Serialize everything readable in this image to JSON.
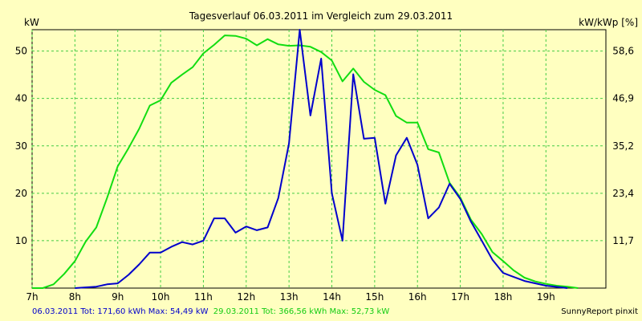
{
  "chart_data": {
    "type": "line",
    "title": "Tagesverlauf 06.03.2011 im Vergleich zum 29.03.2011",
    "ylabel_left": "kW",
    "ylabel_right": "kW/kWp [%]",
    "x_ticks": [
      "7h",
      "8h",
      "9h",
      "10h",
      "11h",
      "12h",
      "13h",
      "14h",
      "15h",
      "16h",
      "17h",
      "18h",
      "19h"
    ],
    "xlim": [
      7.0,
      20.4
    ],
    "y_ticks_left": [
      10,
      20,
      30,
      40,
      50
    ],
    "y_ticks_right": [
      "11,7",
      "23,4",
      "35,2",
      "46,9",
      "58,6"
    ],
    "ylim": [
      0,
      54.5
    ],
    "grid": true,
    "series": [
      {
        "name": "06.03.2011",
        "color": "#0000cc",
        "x": [
          8.0,
          8.5,
          8.75,
          9.0,
          9.25,
          9.5,
          9.75,
          10.0,
          10.25,
          10.5,
          10.75,
          11.0,
          11.25,
          11.5,
          11.75,
          12.0,
          12.25,
          12.5,
          12.75,
          13.0,
          13.25,
          13.5,
          13.75,
          14.0,
          14.25,
          14.5,
          14.75,
          15.0,
          15.25,
          15.5,
          15.75,
          16.0,
          16.25,
          16.5,
          16.75,
          17.0,
          17.25,
          17.5,
          17.75,
          18.0,
          18.5,
          19.0,
          19.5
        ],
        "values": [
          0.0,
          0.3,
          0.8,
          1.0,
          2.8,
          5.0,
          7.5,
          7.5,
          8.7,
          9.7,
          9.2,
          10.0,
          14.7,
          14.7,
          11.7,
          13.0,
          12.2,
          12.8,
          19.0,
          30.5,
          54.5,
          36.4,
          48.4,
          20.0,
          10.0,
          45.1,
          31.5,
          31.7,
          17.8,
          28.0,
          31.7,
          26.0,
          14.7,
          17.0,
          22.0,
          18.8,
          14.0,
          10.0,
          6.0,
          3.2,
          1.5,
          0.5,
          0.0
        ]
      },
      {
        "name": "29.03.2011",
        "color": "#11dd11",
        "x": [
          7.0,
          7.25,
          7.5,
          7.75,
          8.0,
          8.25,
          8.5,
          8.75,
          9.0,
          9.25,
          9.5,
          9.75,
          10.0,
          10.25,
          10.5,
          10.75,
          11.0,
          11.25,
          11.5,
          11.75,
          12.0,
          12.25,
          12.5,
          12.75,
          13.0,
          13.25,
          13.5,
          13.75,
          14.0,
          14.25,
          14.5,
          14.75,
          15.0,
          15.25,
          15.5,
          15.75,
          16.0,
          16.25,
          16.5,
          16.75,
          17.0,
          17.25,
          17.5,
          17.75,
          18.0,
          18.25,
          18.5,
          18.75,
          19.0,
          19.25,
          19.5,
          19.75
        ],
        "values": [
          0.0,
          0.0,
          0.8,
          3.0,
          5.7,
          9.8,
          12.8,
          19.0,
          25.7,
          29.5,
          33.6,
          38.5,
          39.6,
          43.3,
          45.0,
          46.6,
          49.5,
          51.3,
          53.3,
          53.2,
          52.6,
          51.2,
          52.5,
          51.4,
          51.1,
          51.2,
          50.9,
          49.8,
          48.0,
          43.6,
          46.3,
          43.5,
          41.8,
          40.7,
          36.3,
          34.9,
          34.9,
          29.3,
          28.6,
          22.2,
          19.1,
          14.4,
          11.4,
          7.6,
          5.7,
          3.7,
          2.2,
          1.4,
          0.9,
          0.5,
          0.3,
          0.0
        ]
      }
    ]
  },
  "footer": {
    "series1_text": "06.03.2011 Tot: 171,60 kWh Max: 54,49 kW",
    "series2_text": "29.03.2011 Tot: 366,56 kWh Max: 52,73 kW",
    "credit": "SunnyReport pinxit"
  }
}
